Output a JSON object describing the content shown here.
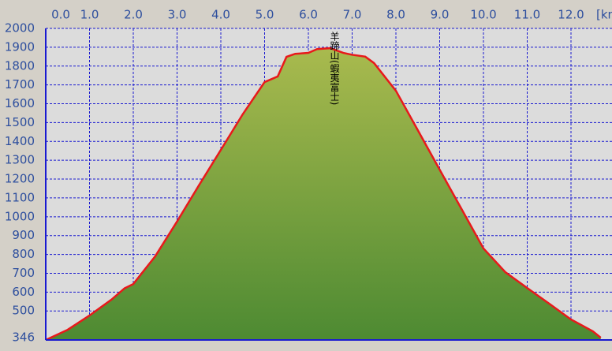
{
  "chart_data": {
    "type": "area",
    "x_label": "[km",
    "annotation": "羊蹄山(蝦夷富士)",
    "x": [
      0,
      0.5,
      1.0,
      1.5,
      1.8,
      2.0,
      2.5,
      3.0,
      3.5,
      4.0,
      4.5,
      5.0,
      5.3,
      5.5,
      5.7,
      6.0,
      6.2,
      6.5,
      6.8,
      7.0,
      7.3,
      7.5,
      8.0,
      8.5,
      9.0,
      9.5,
      10.0,
      10.5,
      11.0,
      11.5,
      12.0,
      12.5,
      12.68
    ],
    "values": [
      346,
      400,
      476,
      560,
      620,
      643,
      790,
      975,
      1167,
      1355,
      1544,
      1715,
      1745,
      1849,
      1865,
      1870,
      1890,
      1895,
      1870,
      1860,
      1850,
      1816,
      1669,
      1460,
      1250,
      1041,
      832,
      706,
      622,
      539,
      455,
      392,
      358
    ],
    "color": "#e8191b",
    "fill_top": "#a9ba4e",
    "fill_bottom": "#4d8a32",
    "xlim": [
      0,
      12.68
    ],
    "xticks": [
      {
        "value": 0,
        "label": "0.0"
      },
      {
        "value": 1,
        "label": "1.0"
      },
      {
        "value": 2,
        "label": "2.0"
      },
      {
        "value": 3,
        "label": "3.0"
      },
      {
        "value": 4,
        "label": "4.0"
      },
      {
        "value": 5,
        "label": "5.0"
      },
      {
        "value": 6,
        "label": "6.0"
      },
      {
        "value": 7,
        "label": "7.0"
      },
      {
        "value": 8,
        "label": "8.0"
      },
      {
        "value": 9,
        "label": "9.0"
      },
      {
        "value": 10,
        "label": "10.0"
      },
      {
        "value": 11,
        "label": "11.0"
      },
      {
        "value": 12,
        "label": "12.0"
      }
    ],
    "ylim": [
      346,
      2000
    ],
    "yticks": [
      346,
      500,
      600,
      700,
      800,
      900,
      1000,
      1100,
      1200,
      1300,
      1400,
      1500,
      1600,
      1700,
      1800,
      1900,
      2000
    ],
    "grid": true
  }
}
